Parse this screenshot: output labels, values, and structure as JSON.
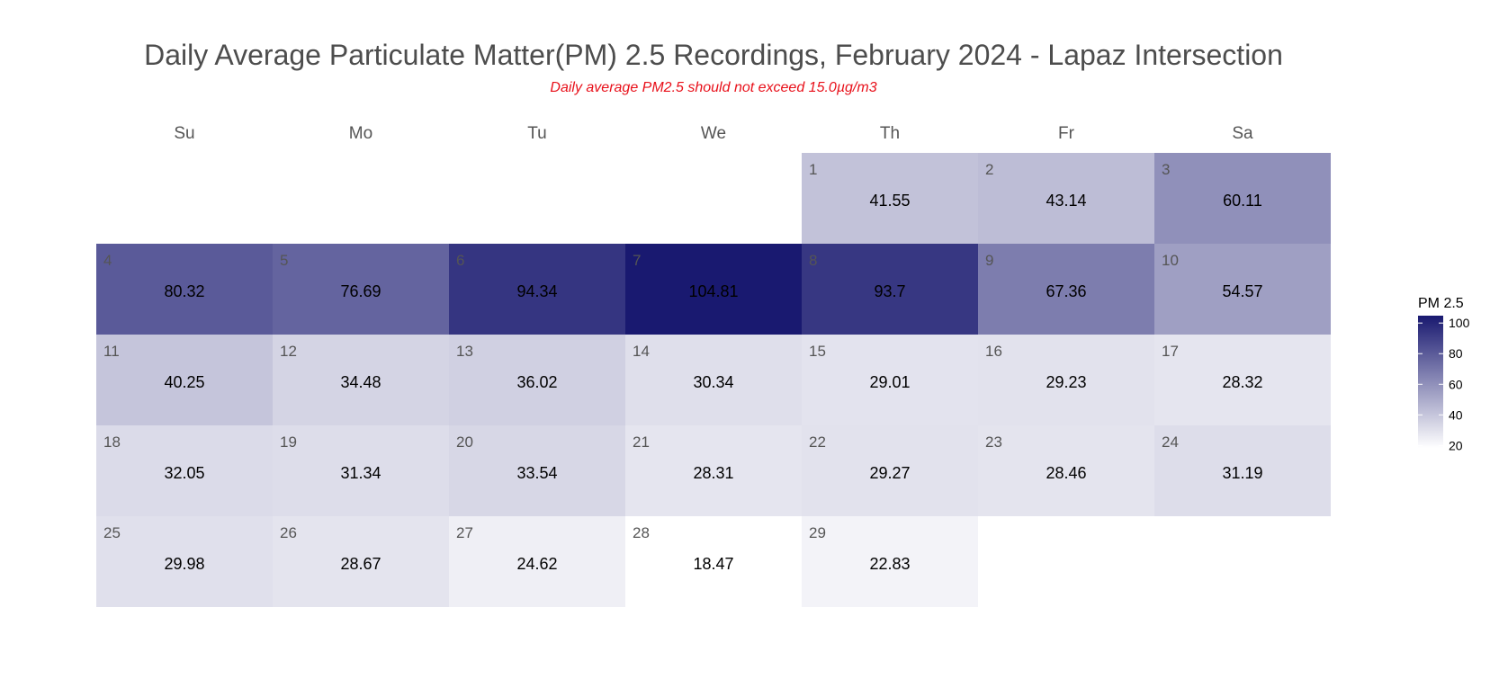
{
  "chart_data": {
    "type": "heatmap",
    "title": "Daily Average Particulate Matter(PM) 2.5 Recordings, February 2024 - Lapaz Intersection",
    "subtitle": "Daily average PM2.5 should not exceed 15.0µg/m3",
    "weekdays": [
      "Su",
      "Mo",
      "Tu",
      "We",
      "Th",
      "Fr",
      "Sa"
    ],
    "first_weekday_index": 4,
    "days": [
      {
        "day": 1,
        "value": 41.55
      },
      {
        "day": 2,
        "value": 43.14
      },
      {
        "day": 3,
        "value": 60.11
      },
      {
        "day": 4,
        "value": 80.32
      },
      {
        "day": 5,
        "value": 76.69
      },
      {
        "day": 6,
        "value": 94.34
      },
      {
        "day": 7,
        "value": 104.81
      },
      {
        "day": 8,
        "value": 93.7
      },
      {
        "day": 9,
        "value": 67.36
      },
      {
        "day": 10,
        "value": 54.57
      },
      {
        "day": 11,
        "value": 40.25
      },
      {
        "day": 12,
        "value": 34.48
      },
      {
        "day": 13,
        "value": 36.02
      },
      {
        "day": 14,
        "value": 30.34
      },
      {
        "day": 15,
        "value": 29.01
      },
      {
        "day": 16,
        "value": 29.23
      },
      {
        "day": 17,
        "value": 28.32
      },
      {
        "day": 18,
        "value": 32.05
      },
      {
        "day": 19,
        "value": 31.34
      },
      {
        "day": 20,
        "value": 33.54
      },
      {
        "day": 21,
        "value": 28.31
      },
      {
        "day": 22,
        "value": 29.27
      },
      {
        "day": 23,
        "value": 28.46
      },
      {
        "day": 24,
        "value": 31.19
      },
      {
        "day": 25,
        "value": 29.98
      },
      {
        "day": 26,
        "value": 28.67
      },
      {
        "day": 27,
        "value": 24.62
      },
      {
        "day": 28,
        "value": 18.47
      },
      {
        "day": 29,
        "value": 22.83
      }
    ],
    "legend": {
      "title": "PM 2.5",
      "ticks": [
        20,
        40,
        60,
        80,
        100
      ],
      "min": 18.47,
      "max": 104.81,
      "placement": "right"
    },
    "color_low": "#ffffff",
    "color_high": "#191970",
    "colors": {
      "title": "#4d4d4d",
      "subtitle": "#e8101a",
      "weekday_label": "#555555",
      "day_number": "#555555",
      "value_label": "#000000"
    }
  }
}
